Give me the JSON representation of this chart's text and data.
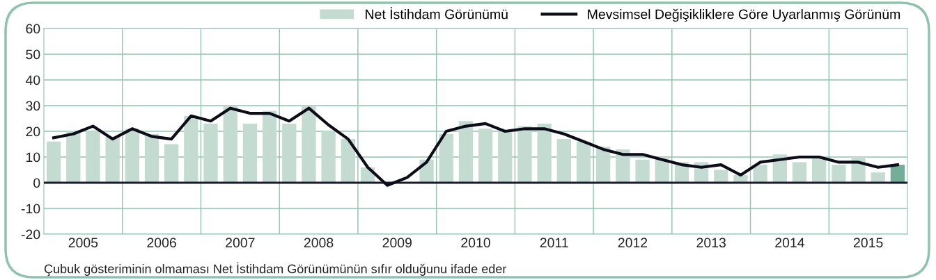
{
  "chart_data": {
    "type": "bar",
    "x": [
      2005.125,
      2005.375,
      2005.625,
      2005.875,
      2006.125,
      2006.375,
      2006.625,
      2006.875,
      2007.125,
      2007.375,
      2007.625,
      2007.875,
      2008.125,
      2008.375,
      2008.625,
      2008.875,
      2009.125,
      2009.375,
      2009.625,
      2009.875,
      2010.125,
      2010.375,
      2010.625,
      2010.875,
      2011.125,
      2011.375,
      2011.625,
      2011.875,
      2012.125,
      2012.375,
      2012.625,
      2012.875,
      2013.125,
      2013.375,
      2013.625,
      2013.875,
      2014.125,
      2014.375,
      2014.625,
      2014.875,
      2015.125,
      2015.375,
      2015.625,
      2015.875
    ],
    "series": [
      {
        "name": "Net İstihdam Görünümü",
        "color": "#c4dbd1",
        "colors": [
          "#c4dbd1",
          "#c4dbd1",
          "#c4dbd1",
          "#c4dbd1",
          "#c4dbd1",
          "#c4dbd1",
          "#c4dbd1",
          "#c4dbd1",
          "#c4dbd1",
          "#c4dbd1",
          "#c4dbd1",
          "#c4dbd1",
          "#c4dbd1",
          "#c4dbd1",
          "#c4dbd1",
          "#c4dbd1",
          "#c4dbd1",
          "#c4dbd1",
          "#c4dbd1",
          "#c4dbd1",
          "#c4dbd1",
          "#c4dbd1",
          "#c4dbd1",
          "#c4dbd1",
          "#c4dbd1",
          "#c4dbd1",
          "#c4dbd1",
          "#c4dbd1",
          "#c4dbd1",
          "#c4dbd1",
          "#c4dbd1",
          "#c4dbd1",
          "#c4dbd1",
          "#c4dbd1",
          "#c4dbd1",
          "#c4dbd1",
          "#c4dbd1",
          "#c4dbd1",
          "#c4dbd1",
          "#c4dbd1",
          "#c4dbd1",
          "#c4dbd1",
          "#c4dbd1",
          "#74ae98"
        ],
        "values": [
          16,
          20,
          20,
          18,
          21,
          19,
          15,
          26,
          23,
          30,
          23,
          28,
          23,
          30,
          20,
          17,
          6,
          0,
          0,
          9,
          19,
          24,
          21,
          20,
          22,
          23,
          17,
          16,
          14,
          13,
          9,
          10,
          8,
          8,
          5,
          3,
          7,
          11,
          8,
          10,
          7,
          10,
          4,
          7
        ]
      },
      {
        "name": "Mevsimsel Değişikliklere Göre Uyarlanmış Görünüm",
        "type": "line",
        "color": "#0d0d1a",
        "values": [
          17.5,
          19,
          22,
          17,
          21,
          18,
          17,
          26,
          24,
          29,
          27,
          27,
          24,
          29,
          22.5,
          17,
          6,
          -1,
          2,
          8,
          20,
          22,
          23,
          20,
          21,
          21,
          19,
          16,
          13,
          11,
          11,
          9,
          7,
          6,
          7,
          3,
          8,
          9,
          10,
          10,
          8,
          8,
          6,
          7
        ]
      }
    ],
    "xlim": [
      2005,
      2016
    ],
    "xticks": [
      {
        "value": 2005.5,
        "label": "2005"
      },
      {
        "value": 2006.5,
        "label": "2006"
      },
      {
        "value": 2007.5,
        "label": "2007"
      },
      {
        "value": 2008.5,
        "label": "2008"
      },
      {
        "value": 2009.5,
        "label": "2009"
      },
      {
        "value": 2010.5,
        "label": "2010"
      },
      {
        "value": 2011.5,
        "label": "2011"
      },
      {
        "value": 2012.5,
        "label": "2012"
      },
      {
        "value": 2013.5,
        "label": "2013"
      },
      {
        "value": 2014.5,
        "label": "2014"
      },
      {
        "value": 2015.5,
        "label": "2015"
      },
      {
        "value": 2006,
        "label": null
      },
      {
        "value": 2007,
        "label": null
      },
      {
        "value": 2008,
        "label": null
      },
      {
        "value": 2009,
        "label": null
      },
      {
        "value": 2010,
        "label": null
      },
      {
        "value": 2011,
        "label": null
      },
      {
        "value": 2012,
        "label": null
      },
      {
        "value": 2013,
        "label": null
      },
      {
        "value": 2014,
        "label": null
      },
      {
        "value": 2015,
        "label": null
      }
    ],
    "ylim": [
      -20,
      60
    ],
    "yticks": [
      -20,
      -10,
      0,
      10,
      20,
      30,
      40,
      50,
      60
    ],
    "grid": true,
    "legend": "top right",
    "ref_lines": [
      {
        "axis": "y",
        "value": 0,
        "color": "#1a1a2e"
      }
    ],
    "annotations": [
      "Çubuk gösteriminin olmaması Net İstihdam Görünümünün sıfır olduğunu ifade eder"
    ]
  }
}
